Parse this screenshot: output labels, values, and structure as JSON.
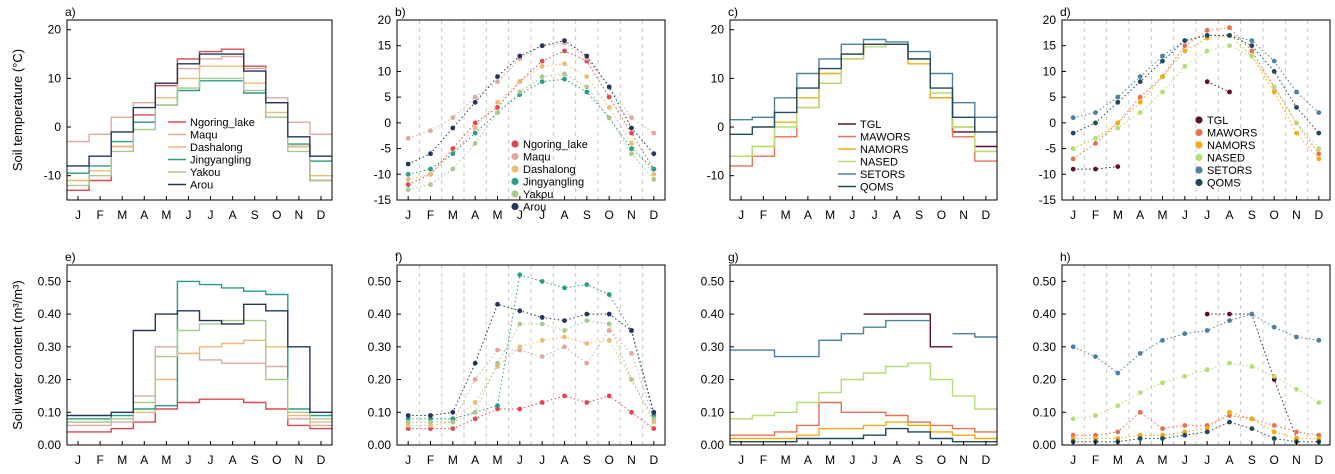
{
  "figure": {
    "ylabel_top": "Soil temperature (°C)",
    "ylabel_bottom": "Soil water content  (m³/m³)"
  },
  "months": [
    "J",
    "F",
    "M",
    "A",
    "M",
    "J",
    "J",
    "A",
    "S",
    "O",
    "N",
    "D"
  ],
  "site_colors": {
    "Ngoring_lake": "#e0484e",
    "Maqu": "#dfa9a0",
    "Dashalong": "#eeba78",
    "Jingyangling": "#2a9d86",
    "Yakou": "#a9c98e",
    "Arou": "#24355e",
    "TGL": "#5e0f2e",
    "MAWORS": "#e67255",
    "NAMORS": "#f4ac14",
    "NASED": "#b7de74",
    "SETORS": "#4b82a2",
    "QOMS": "#21485c"
  },
  "chart_data": [
    {
      "panel": "a)",
      "type": "line",
      "ylim": [
        -15,
        22
      ],
      "yticks": [
        -10,
        0,
        10,
        20
      ],
      "xticks": [
        "J",
        "F",
        "M",
        "A",
        "M",
        "J",
        "J",
        "A",
        "S",
        "O",
        "N",
        "D"
      ],
      "legend": "lower-left",
      "series": [
        {
          "name": "Ngoring_lake",
          "values": [
            -13,
            -11,
            -4,
            2.5,
            8.5,
            14,
            15.5,
            16,
            12.5,
            5,
            -4,
            -11
          ]
        },
        {
          "name": "Maqu",
          "values": [
            -3,
            -1.5,
            2,
            5,
            9,
            12,
            14,
            14.5,
            12,
            6,
            1,
            -1.5
          ]
        },
        {
          "name": "Dashalong",
          "values": [
            -11,
            -9,
            -4,
            1,
            6,
            10,
            12.5,
            12.5,
            9,
            3,
            -4,
            -10
          ]
        },
        {
          "name": "Jingyangling",
          "values": [
            -9.5,
            -8,
            -3,
            1,
            4.5,
            7.5,
            9.5,
            9.5,
            7,
            2,
            -3.5,
            -7
          ]
        },
        {
          "name": "Yakou",
          "values": [
            -12,
            -10,
            -5,
            -0.5,
            4.5,
            8,
            10,
            10,
            7.5,
            2,
            -5,
            -11
          ]
        },
        {
          "name": "Arou",
          "values": [
            -8,
            -6,
            -1,
            4,
            9,
            13,
            15,
            15,
            11.5,
            5,
            -2,
            -6
          ]
        }
      ]
    },
    {
      "panel": "b)",
      "type": "scatter",
      "ylim": [
        -15,
        20
      ],
      "yticks": [
        -15,
        -10,
        -5,
        0,
        5,
        10,
        15,
        20
      ],
      "xticks": [
        "J",
        "F",
        "M",
        "A",
        "M",
        "J",
        "J",
        "A",
        "S",
        "O",
        "N",
        "D"
      ],
      "legend": "center",
      "series": [
        {
          "name": "Ngoring_lake",
          "values": [
            -12,
            -10,
            -5,
            0,
            3,
            8,
            12,
            14,
            12,
            5,
            -2,
            -9
          ]
        },
        {
          "name": "Maqu",
          "values": [
            -3,
            -1.5,
            1,
            5,
            8,
            12.5,
            15,
            15.5,
            12.5,
            7,
            1,
            -2
          ]
        },
        {
          "name": "Dashalong",
          "values": [
            -11,
            -10,
            -6,
            -1,
            4,
            8,
            11,
            11.5,
            9,
            3,
            -4,
            -10
          ]
        },
        {
          "name": "Jingyangling",
          "values": [
            -10,
            -9,
            -6,
            -2,
            2,
            5.5,
            8,
            8.5,
            6,
            1,
            -5,
            -9
          ]
        },
        {
          "name": "Yakou",
          "values": [
            -13,
            -12,
            -9,
            -4,
            2,
            6,
            9,
            9.5,
            7,
            1,
            -6,
            -11
          ]
        },
        {
          "name": "Arou",
          "values": [
            -8,
            -6,
            -1,
            4,
            9,
            13,
            15,
            16,
            13,
            7,
            -1,
            -6
          ]
        }
      ]
    },
    {
      "panel": "c)",
      "type": "line",
      "ylim": [
        -15,
        22
      ],
      "yticks": [
        -10,
        0,
        10,
        20
      ],
      "xticks": [
        "J",
        "F",
        "M",
        "A",
        "M",
        "J",
        "J",
        "A",
        "S",
        "O",
        "N",
        "D"
      ],
      "legend": "lower-right",
      "series": [
        {
          "name": "TGL",
          "values": [
            null,
            null,
            null,
            null,
            null,
            null,
            null,
            null,
            null,
            6,
            -1,
            -4
          ]
        },
        {
          "name": "MAWORS",
          "values": [
            -8,
            -6,
            -2,
            4,
            9,
            14,
            17,
            17,
            14,
            6,
            -2,
            -7
          ]
        },
        {
          "name": "NAMORS",
          "values": [
            -6,
            -4,
            1,
            6,
            11,
            15,
            17,
            17,
            13,
            6,
            0,
            -5
          ]
        },
        {
          "name": "NASED",
          "values": [
            -6,
            -4,
            0,
            4,
            9,
            14,
            16.5,
            17,
            14,
            7,
            0,
            -5
          ]
        },
        {
          "name": "SETORS",
          "values": [
            1.5,
            2,
            6,
            11,
            14,
            17,
            18,
            17.5,
            15.5,
            11,
            5,
            2
          ]
        },
        {
          "name": "QOMS",
          "values": [
            -1.5,
            0,
            3,
            8,
            12,
            15,
            17,
            17,
            14,
            8,
            2,
            -1
          ]
        }
      ]
    },
    {
      "panel": "d)",
      "type": "scatter",
      "ylim": [
        -15,
        20
      ],
      "yticks": [
        -15,
        -10,
        -5,
        0,
        5,
        10,
        15,
        20
      ],
      "xticks": [
        "J",
        "F",
        "M",
        "A",
        "M",
        "J",
        "J",
        "A",
        "S",
        "O",
        "N",
        "D"
      ],
      "legend": "center-right",
      "series": [
        {
          "name": "TGL",
          "values": [
            -9,
            -9,
            -8.5,
            null,
            null,
            null,
            8,
            6,
            null,
            null,
            null,
            null
          ]
        },
        {
          "name": "MAWORS",
          "values": [
            -7,
            -4,
            0,
            5,
            9,
            15,
            18,
            18.5,
            14,
            7,
            0,
            -6
          ]
        },
        {
          "name": "NAMORS",
          "values": [
            -5,
            -3,
            0,
            4,
            9,
            14,
            16.5,
            17,
            13,
            6,
            -2,
            -7
          ]
        },
        {
          "name": "NASED",
          "values": [
            -5,
            -3,
            -1,
            2,
            6,
            11,
            14,
            15,
            13,
            7,
            0,
            -5
          ]
        },
        {
          "name": "SETORS",
          "values": [
            1,
            2,
            5,
            9,
            13,
            16,
            17,
            17,
            16,
            12,
            6,
            2
          ]
        },
        {
          "name": "QOMS",
          "values": [
            -2,
            0,
            4,
            8,
            12,
            16,
            17,
            17,
            15,
            10,
            3,
            -2
          ]
        }
      ]
    },
    {
      "panel": "e)",
      "type": "line",
      "ylim": [
        0,
        0.55
      ],
      "yticks": [
        0,
        0.1,
        0.2,
        0.3,
        0.4,
        0.5
      ],
      "xticks": [
        "J",
        "F",
        "M",
        "A",
        "M",
        "J",
        "J",
        "A",
        "S",
        "O",
        "N",
        "D"
      ],
      "series": [
        {
          "name": "Ngoring_lake",
          "values": [
            0.04,
            0.04,
            0.05,
            0.07,
            0.11,
            0.13,
            0.14,
            0.14,
            0.13,
            0.11,
            0.06,
            0.05
          ]
        },
        {
          "name": "Maqu",
          "values": [
            0.06,
            0.06,
            0.07,
            0.15,
            0.3,
            0.28,
            0.26,
            0.25,
            0.25,
            0.24,
            0.08,
            0.06
          ]
        },
        {
          "name": "Dashalong",
          "values": [
            0.07,
            0.07,
            0.08,
            0.1,
            0.2,
            0.28,
            0.3,
            0.31,
            0.32,
            0.3,
            0.09,
            0.07
          ]
        },
        {
          "name": "Jingyangling",
          "values": [
            0.08,
            0.08,
            0.09,
            0.11,
            0.12,
            0.5,
            0.49,
            0.48,
            0.47,
            0.46,
            0.11,
            0.09
          ]
        },
        {
          "name": "Yakou",
          "values": [
            0.07,
            0.07,
            0.08,
            0.13,
            0.27,
            0.35,
            0.37,
            0.38,
            0.38,
            0.2,
            0.1,
            0.08
          ]
        },
        {
          "name": "Arou",
          "values": [
            0.09,
            0.09,
            0.1,
            0.35,
            0.4,
            0.41,
            0.38,
            0.37,
            0.43,
            0.41,
            0.3,
            0.1
          ]
        }
      ]
    },
    {
      "panel": "f)",
      "type": "scatter",
      "ylim": [
        0,
        0.55
      ],
      "yticks": [
        0,
        0.1,
        0.2,
        0.3,
        0.4,
        0.5
      ],
      "xticks": [
        "J",
        "F",
        "M",
        "A",
        "M",
        "J",
        "J",
        "A",
        "S",
        "O",
        "N",
        "D"
      ],
      "series": [
        {
          "name": "Ngoring_lake",
          "values": [
            0.05,
            0.05,
            0.05,
            0.08,
            0.11,
            0.11,
            0.13,
            0.15,
            0.13,
            0.15,
            0.1,
            0.05
          ]
        },
        {
          "name": "Maqu",
          "values": [
            0.07,
            0.07,
            0.07,
            0.2,
            0.29,
            0.29,
            0.27,
            0.3,
            0.25,
            0.35,
            0.28,
            0.08
          ]
        },
        {
          "name": "Dashalong",
          "values": [
            0.06,
            0.06,
            0.07,
            0.13,
            0.24,
            0.3,
            0.32,
            0.33,
            0.31,
            0.32,
            0.2,
            0.07
          ]
        },
        {
          "name": "Jingyangling",
          "values": [
            0.08,
            0.08,
            0.08,
            0.1,
            0.12,
            0.52,
            0.5,
            0.48,
            0.49,
            0.46,
            0.35,
            0.09
          ]
        },
        {
          "name": "Yakou",
          "values": [
            0.07,
            0.07,
            0.07,
            0.1,
            0.25,
            0.37,
            0.37,
            0.35,
            0.38,
            0.37,
            0.2,
            0.08
          ]
        },
        {
          "name": "Arou",
          "values": [
            0.09,
            0.09,
            0.1,
            0.25,
            0.43,
            0.41,
            0.39,
            0.38,
            0.4,
            0.4,
            0.35,
            0.1
          ]
        }
      ]
    },
    {
      "panel": "g)",
      "type": "line",
      "ylim": [
        0,
        0.55
      ],
      "yticks": [
        0,
        0.1,
        0.2,
        0.3,
        0.4,
        0.5
      ],
      "xticks": [
        "J",
        "F",
        "M",
        "A",
        "M",
        "J",
        "J",
        "A",
        "S",
        "O",
        "N",
        "D"
      ],
      "series": [
        {
          "name": "TGL",
          "values": [
            null,
            null,
            null,
            null,
            null,
            null,
            0.4,
            0.4,
            0.4,
            0.3,
            null,
            null
          ]
        },
        {
          "name": "MAWORS",
          "values": [
            0.03,
            0.03,
            0.04,
            0.06,
            0.13,
            0.1,
            0.1,
            0.09,
            0.07,
            0.06,
            0.05,
            0.04
          ]
        },
        {
          "name": "NAMORS",
          "values": [
            0.02,
            0.02,
            0.02,
            0.03,
            0.05,
            0.05,
            0.06,
            0.07,
            0.06,
            0.04,
            0.03,
            0.02
          ]
        },
        {
          "name": "NASED",
          "values": [
            0.08,
            0.09,
            0.1,
            0.13,
            0.16,
            0.2,
            0.22,
            0.24,
            0.25,
            0.2,
            0.15,
            0.11
          ]
        },
        {
          "name": "SETORS",
          "values": [
            0.29,
            0.29,
            0.27,
            0.27,
            0.32,
            0.34,
            0.36,
            0.38,
            0.38,
            null,
            0.34,
            0.33
          ]
        },
        {
          "name": "QOMS",
          "values": [
            0.01,
            0.01,
            0.01,
            0.02,
            0.02,
            0.02,
            0.03,
            0.05,
            0.04,
            0.02,
            0.01,
            0.01
          ]
        }
      ]
    },
    {
      "panel": "h)",
      "type": "scatter",
      "ylim": [
        0,
        0.55
      ],
      "yticks": [
        0,
        0.1,
        0.2,
        0.3,
        0.4,
        0.5
      ],
      "xticks": [
        "J",
        "F",
        "M",
        "A",
        "M",
        "J",
        "J",
        "A",
        "S",
        "O",
        "N",
        "D"
      ],
      "series": [
        {
          "name": "TGL",
          "values": [
            null,
            null,
            null,
            null,
            null,
            null,
            0.4,
            0.4,
            0.4,
            0.2,
            0.02,
            null
          ]
        },
        {
          "name": "MAWORS",
          "values": [
            0.03,
            0.03,
            0.04,
            0.1,
            0.05,
            0.06,
            0.06,
            0.09,
            0.08,
            0.06,
            0.04,
            0.03
          ]
        },
        {
          "name": "NAMORS",
          "values": [
            0.02,
            0.02,
            0.02,
            0.03,
            0.03,
            0.04,
            0.05,
            0.1,
            0.08,
            0.04,
            0.02,
            0.02
          ]
        },
        {
          "name": "NASED",
          "values": [
            0.08,
            0.09,
            0.12,
            0.16,
            0.19,
            0.21,
            0.23,
            0.25,
            0.24,
            0.21,
            0.17,
            0.13
          ]
        },
        {
          "name": "SETORS",
          "values": [
            0.3,
            0.27,
            0.22,
            0.28,
            0.32,
            0.34,
            0.35,
            0.38,
            0.4,
            0.36,
            0.33,
            0.32
          ]
        },
        {
          "name": "QOMS",
          "values": [
            0.01,
            0.01,
            0.01,
            0.02,
            0.02,
            0.03,
            0.04,
            0.07,
            0.05,
            0.02,
            0.01,
            0.01
          ]
        }
      ]
    }
  ]
}
